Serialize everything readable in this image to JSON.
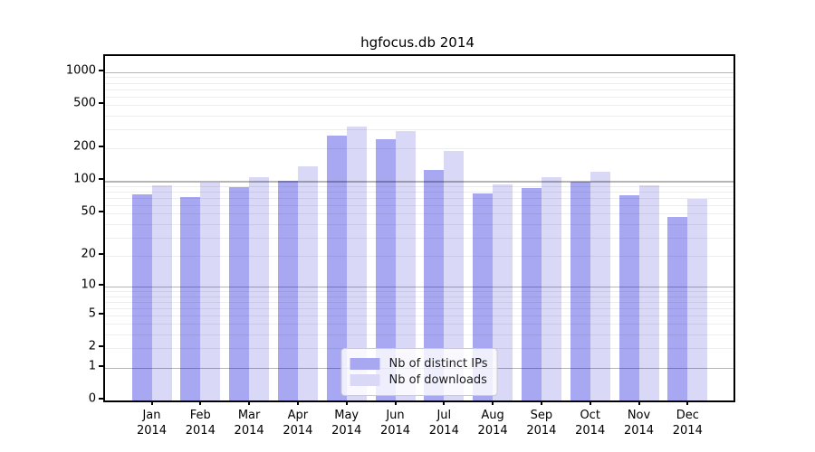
{
  "chart_data": {
    "type": "bar",
    "title": "hgfocus.db 2014",
    "categories": [
      "Jan",
      "Feb",
      "Mar",
      "Apr",
      "May",
      "Jun",
      "Jul",
      "Aug",
      "Sep",
      "Oct",
      "Nov",
      "Dec"
    ],
    "category_year": "2014",
    "series": [
      {
        "name": "Nb of distinct IPs",
        "color": "#a8a8f2",
        "values": [
          76,
          71,
          89,
          100,
          265,
          243,
          126,
          77,
          87,
          99,
          74,
          47
        ]
      },
      {
        "name": "Nb of downloads",
        "color": "#d9d9f7",
        "values": [
          92,
          98,
          110,
          138,
          320,
          290,
          190,
          93,
          109,
          122,
          92,
          69
        ]
      }
    ],
    "yscale": "log1p",
    "y_ticks": [
      0,
      1,
      2,
      5,
      10,
      20,
      50,
      100,
      200,
      500,
      1000
    ],
    "ylim": [
      0,
      1460
    ],
    "grid": {
      "on": true,
      "major_color": "#b5b5b5",
      "minor_color": "#ececec"
    },
    "legend": {
      "position": "lower center"
    }
  }
}
